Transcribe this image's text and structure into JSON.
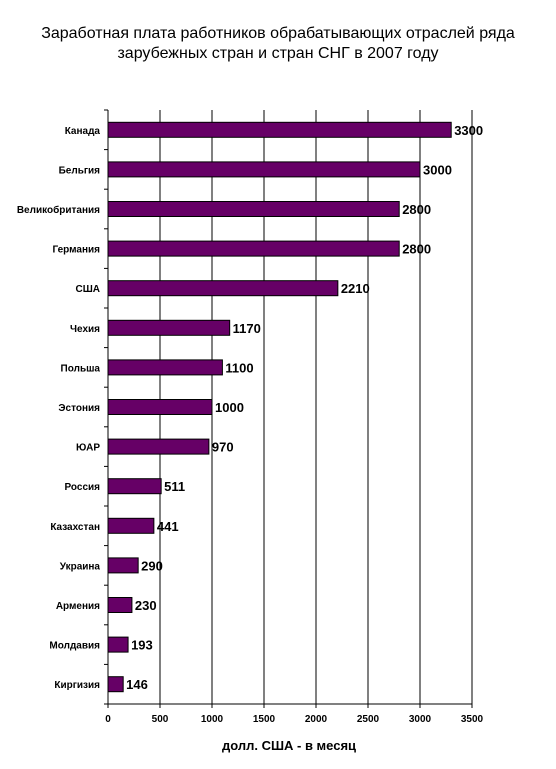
{
  "chart_data": {
    "type": "bar",
    "orientation": "horizontal",
    "title": "Заработная плата работников обрабатывающих отраслей ряда зарубежных стран и стран СНГ в 2007 году",
    "xlabel": "долл. США - в месяц",
    "ylabel": "",
    "categories": [
      "Канада",
      "Бельгия",
      "Великобритания",
      "Германия",
      "США",
      "Чехия",
      "Польша",
      "Эстония",
      "ЮАР",
      "Россия",
      "Казахстан",
      "Украина",
      "Армения",
      "Молдавия",
      "Киргизия"
    ],
    "values": [
      3300,
      3000,
      2800,
      2800,
      2210,
      1170,
      1100,
      1000,
      970,
      511,
      441,
      290,
      230,
      193,
      146
    ],
    "xlim": [
      0,
      3500
    ],
    "xticks": [
      0,
      500,
      1000,
      1500,
      2000,
      2500,
      3000,
      3500
    ],
    "grid": true,
    "legend": "none",
    "bar_color": "#660066",
    "bar_edge_color": "#000000"
  }
}
